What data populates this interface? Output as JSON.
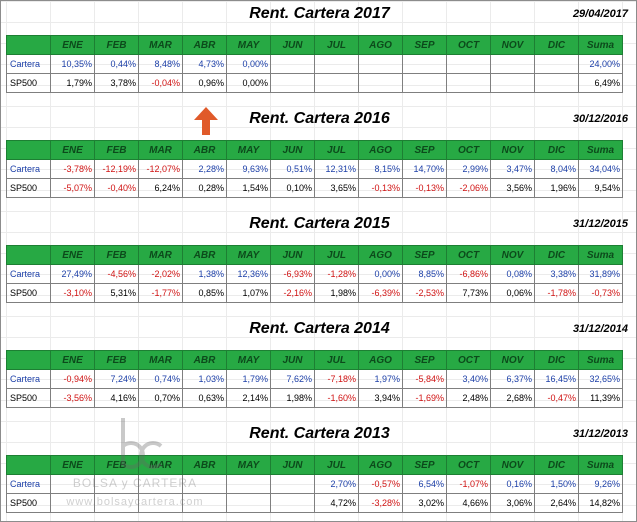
{
  "months": [
    "ENE",
    "FEB",
    "MAR",
    "ABR",
    "MAY",
    "JUN",
    "JUL",
    "AGO",
    "SEP",
    "OCT",
    "NOV",
    "DIC",
    "Suma"
  ],
  "watermark": {
    "brand": "BOLSA y CARTERA",
    "url": "www.bolsaycartera.com"
  },
  "colors": {
    "header_green": "#27a944",
    "cartera_blue": "#1c3fa8",
    "negative_red": "#d11414",
    "arrow_orange": "#e05a2a"
  },
  "tables": [
    {
      "title": "Rent. Cartera 2017",
      "date": "29/04/2017",
      "rows": [
        {
          "label": "Cartera",
          "values": [
            "10,35%",
            "0,44%",
            "8,48%",
            "4,73%",
            "0,00%",
            "",
            "",
            "",
            "",
            "",
            "",
            "",
            "24,00%"
          ]
        },
        {
          "label": "SP500",
          "values": [
            "1,79%",
            "3,78%",
            "-0,04%",
            "0,96%",
            "0,00%",
            "",
            "",
            "",
            "",
            "",
            "",
            "",
            "6,49%"
          ]
        }
      ]
    },
    {
      "title": "Rent. Cartera 2016",
      "date": "30/12/2016",
      "rows": [
        {
          "label": "Cartera",
          "values": [
            "-3,78%",
            "-12,19%",
            "-12,07%",
            "2,28%",
            "9,63%",
            "0,51%",
            "12,31%",
            "8,15%",
            "14,70%",
            "2,99%",
            "3,47%",
            "8,04%",
            "34,04%"
          ]
        },
        {
          "label": "SP500",
          "values": [
            "-5,07%",
            "-0,40%",
            "6,24%",
            "0,28%",
            "1,54%",
            "0,10%",
            "3,65%",
            "-0,13%",
            "-0,13%",
            "-2,06%",
            "3,56%",
            "1,96%",
            "9,54%"
          ]
        }
      ]
    },
    {
      "title": "Rent. Cartera 2015",
      "date": "31/12/2015",
      "rows": [
        {
          "label": "Cartera",
          "values": [
            "27,49%",
            "-4,56%",
            "-2,02%",
            "1,38%",
            "12,36%",
            "-6,93%",
            "-1,28%",
            "0,00%",
            "8,85%",
            "-6,86%",
            "0,08%",
            "3,38%",
            "31,89%"
          ]
        },
        {
          "label": "SP500",
          "values": [
            "-3,10%",
            "5,31%",
            "-1,77%",
            "0,85%",
            "1,07%",
            "-2,16%",
            "1,98%",
            "-6,39%",
            "-2,53%",
            "7,73%",
            "0,06%",
            "-1,78%",
            "-0,73%"
          ]
        }
      ]
    },
    {
      "title": "Rent. Cartera 2014",
      "date": "31/12/2014",
      "rows": [
        {
          "label": "Cartera",
          "values": [
            "-0,94%",
            "7,24%",
            "0,74%",
            "1,03%",
            "1,79%",
            "7,62%",
            "-7,18%",
            "1,97%",
            "-5,84%",
            "3,40%",
            "6,37%",
            "16,45%",
            "32,65%"
          ]
        },
        {
          "label": "SP500",
          "values": [
            "-3,56%",
            "4,16%",
            "0,70%",
            "0,63%",
            "2,14%",
            "1,98%",
            "-1,60%",
            "3,94%",
            "-1,69%",
            "2,48%",
            "2,68%",
            "-0,47%",
            "11,39%"
          ]
        }
      ]
    },
    {
      "title": "Rent. Cartera 2013",
      "date": "31/12/2013",
      "rows": [
        {
          "label": "Cartera",
          "values": [
            "",
            "",
            "",
            "",
            "",
            "",
            "2,70%",
            "-0,57%",
            "6,54%",
            "-1,07%",
            "0,16%",
            "1,50%",
            "9,26%"
          ]
        },
        {
          "label": "SP500",
          "values": [
            "",
            "",
            "",
            "",
            "",
            "",
            "4,72%",
            "-3,28%",
            "3,02%",
            "4,66%",
            "3,06%",
            "2,64%",
            "14,82%"
          ]
        }
      ]
    }
  ]
}
